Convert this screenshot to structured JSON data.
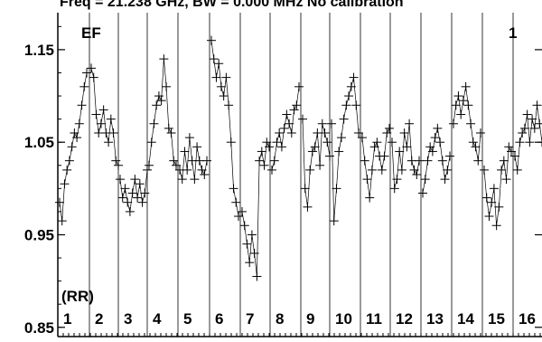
{
  "chart_data": {
    "type": "scatter",
    "title": "Freq = 21.238 GHz, BW = 0.000 MHz   No calibration",
    "panel_label": "EF",
    "panel_number": "1",
    "x_group_label": "(RR)",
    "yticks": [
      "1.15",
      "1.05",
      "0.95",
      "0.85"
    ],
    "ytick_values": [
      1.15,
      1.05,
      0.95,
      0.85
    ],
    "ylim": [
      0.84,
      1.19
    ],
    "channels": [
      "1",
      "2",
      "3",
      "4",
      "5",
      "6",
      "7",
      "8",
      "9",
      "10",
      "11",
      "12",
      "13",
      "14",
      "15",
      "16"
    ],
    "grid": true,
    "series": [
      {
        "marker": "plus",
        "line": true,
        "values": [
          [
            0.985,
            0.965,
            1.005,
            1.02,
            1.03,
            1.045,
            1.06,
            1.055,
            1.07,
            1.09,
            1.11,
            1.125
          ],
          [
            1.13,
            1.12,
            1.08,
            1.06,
            1.07,
            1.085,
            1.06,
            1.05,
            1.075,
            1.06,
            1.03,
            1.025
          ],
          [
            1.01,
            0.99,
            1.0,
            0.985,
            0.975,
            0.995,
            1.01,
            0.99,
            1.005,
            0.985,
            0.995,
            1.02
          ],
          [
            1.025,
            1.05,
            1.07,
            1.09,
            1.1,
            1.095,
            1.14,
            1.11,
            1.065,
            1.06,
            1.03,
            1.025
          ],
          [
            1.02,
            1.01,
            1.04,
            1.02,
            1.055,
            1.03,
            1.01,
            1.045,
            1.03,
            1.02,
            1.015,
            1.03
          ],
          [
            1.16,
            1.14,
            1.12,
            1.135,
            1.11,
            1.1,
            1.12,
            1.09,
            1.05,
            1.0,
            0.985,
            0.97
          ],
          [
            0.975,
            0.96,
            0.94,
            0.92,
            0.95,
            0.93,
            0.905,
            1.03,
            1.04,
            1.025,
            1.05,
            1.045
          ],
          [
            1.02,
            1.03,
            1.05,
            1.06,
            1.045,
            1.065,
            1.08,
            1.07,
            1.06,
            1.085,
            1.09,
            1.11
          ],
          [
            1.075,
            1.0,
            0.98,
            1.02,
            1.04,
            1.045,
            1.06,
            1.025,
            1.07,
            1.06,
            1.05,
            1.035
          ],
          [
            1.07,
            0.965,
            1.0,
            1.04,
            1.055,
            1.075,
            1.09,
            1.1,
            1.11,
            1.12,
            1.09,
            1.06
          ],
          [
            1.055,
            1.03,
            1.01,
            0.99,
            1.02,
            1.045,
            1.05,
            1.035,
            1.02,
            1.035,
            1.06,
            1.065
          ],
          [
            1.05,
            1.0,
            1.01,
            1.04,
            1.02,
            1.06,
            1.045,
            1.07,
            1.03,
            1.02,
            1.015,
            1.03
          ],
          [
            0.995,
            1.01,
            1.03,
            1.045,
            1.04,
            1.055,
            1.065,
            1.05,
            1.03,
            1.01,
            1.02,
            1.035
          ],
          [
            1.07,
            1.09,
            1.1,
            1.08,
            1.095,
            1.11,
            1.09,
            1.07,
            1.05,
            1.045,
            1.03,
            1.06
          ],
          [
            1.02,
            0.99,
            0.97,
            0.985,
            1.0,
            0.96,
            0.98,
            1.02,
            1.03,
            1.01,
            1.045,
            1.04
          ],
          [
            1.035,
            1.02,
            1.05,
            1.06,
            1.065,
            1.08,
            1.05,
            1.075,
            1.065,
            1.09,
            1.07,
            1.05
          ]
        ]
      }
    ]
  }
}
